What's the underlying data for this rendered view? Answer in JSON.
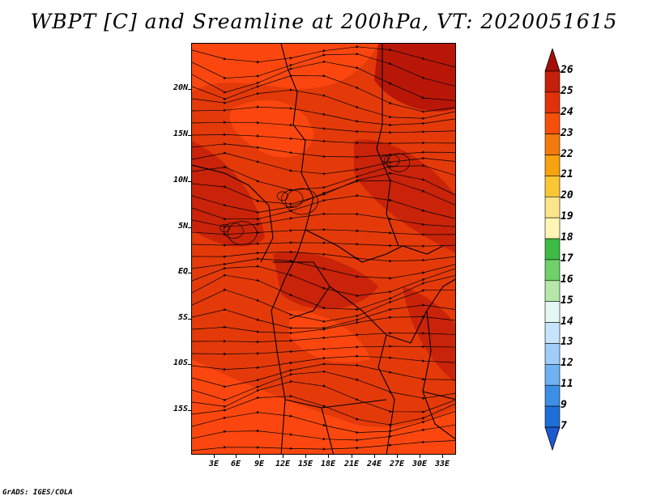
{
  "title": "WBPT [C] and Sreamline at 200hPa, VT: 2020051615",
  "footer": "GrADS: IGES/COLA",
  "map": {
    "lat_labels": [
      "20N",
      "15N",
      "10N",
      "5N",
      "EQ",
      "5S",
      "10S",
      "15S"
    ],
    "lon_labels": [
      "3E",
      "6E",
      "9E",
      "12E",
      "15E",
      "18E",
      "21E",
      "24E",
      "27E",
      "30E",
      "33E"
    ],
    "field_colors": {
      "base": "#e43a0a",
      "light": "#ff4a10",
      "dark": "#c4200a",
      "darkest": "#b01208"
    }
  },
  "colorbar": {
    "labels": [
      "26",
      "25",
      "24",
      "23",
      "22",
      "21",
      "20",
      "19",
      "18",
      "17",
      "16",
      "15",
      "14",
      "13",
      "12",
      "11",
      "9",
      "7"
    ],
    "colors": [
      "#a50f08",
      "#c4200a",
      "#e03208",
      "#f5500a",
      "#f27a0c",
      "#f7a30f",
      "#fbc635",
      "#fde68a",
      "#fff5b5",
      "#3dbb45",
      "#6ed16a",
      "#b5e8a8",
      "#e5f7f5",
      "#c6e4fb",
      "#9ecdf7",
      "#6fb2f2",
      "#3d8fe6",
      "#1f6fd8",
      "#1d5ad1"
    ]
  }
}
